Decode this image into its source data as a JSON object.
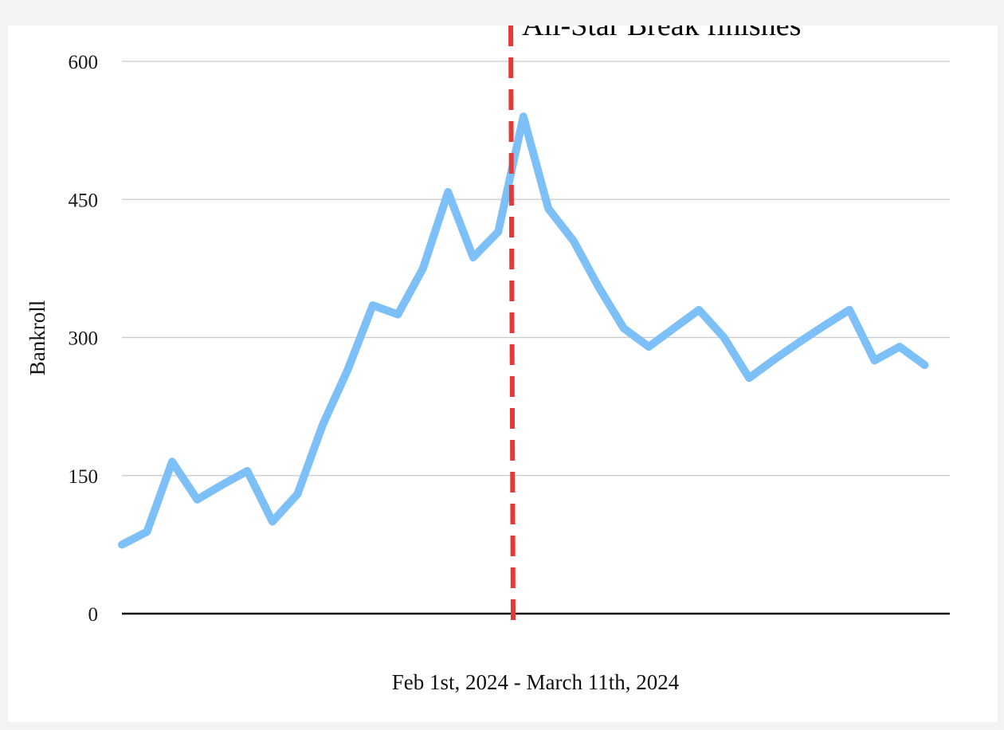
{
  "chart_data": {
    "type": "line",
    "title": "",
    "xlabel": "Feb 1st, 2024 - March 11th, 2024",
    "ylabel": "Bankroll",
    "ylim": [
      0,
      600
    ],
    "y_ticks": [
      "0",
      "150",
      "300",
      "450",
      "600"
    ],
    "grid": true,
    "legend": "none",
    "series": [
      {
        "color": "#7dc0f7",
        "x": [
          0,
          1,
          2,
          3,
          4,
          5,
          6,
          7,
          8,
          9,
          10,
          11,
          12,
          13,
          14,
          15,
          16,
          17,
          18,
          19,
          20,
          21,
          22,
          23,
          24,
          25,
          26,
          27,
          28,
          29,
          30,
          31,
          32,
          33
        ],
        "values": [
          75,
          89,
          165,
          124,
          140,
          155,
          100,
          130,
          205,
          265,
          335,
          325,
          375,
          458,
          387,
          415,
          540,
          440,
          405,
          355,
          310,
          290,
          310,
          330,
          300,
          256,
          276,
          295,
          313,
          330,
          275,
          290,
          270,
          null
        ]
      }
    ],
    "annotation": {
      "label": "All-Star Break finishes",
      "x": 15.5,
      "color": "#e53935"
    }
  }
}
